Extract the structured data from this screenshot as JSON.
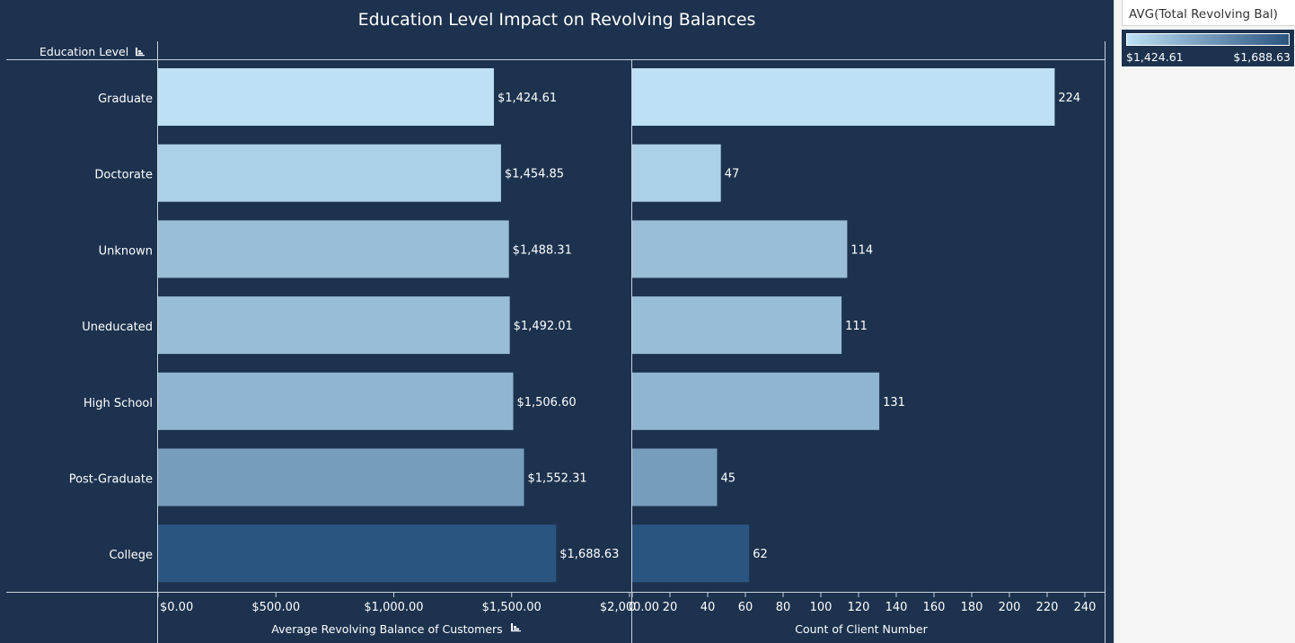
{
  "title": "Education Level Impact on Revolving Balances",
  "row_header": "Education Level",
  "legend": {
    "title": "AVG(Total Revolving Bal)",
    "min_label": "$1,424.61",
    "max_label": "$1,688.63",
    "color_low": "#bde0f4",
    "color_high": "#2b5581"
  },
  "chart_data": [
    {
      "type": "bar",
      "orientation": "horizontal",
      "categories": [
        "Graduate",
        "Doctorate",
        "Unknown",
        "Uneducated",
        "High School",
        "Post-Graduate",
        "College"
      ],
      "values": [
        1424.61,
        1454.85,
        1488.31,
        1492.01,
        1506.6,
        1552.31,
        1688.63
      ],
      "data_labels": [
        "$1,424.61",
        "$1,454.85",
        "$1,488.31",
        "$1,492.01",
        "$1,506.60",
        "$1,552.31",
        "$1,688.63"
      ],
      "xlabel": "Average Revolving Balance of Customers",
      "xlim": [
        0,
        2000
      ],
      "xticks": [
        0,
        500,
        1000,
        1500,
        2000
      ],
      "xtick_labels": [
        "$0.00",
        "$500.00",
        "$1,000.00",
        "$1,500.00",
        "$2,000.00"
      ],
      "grid": false
    },
    {
      "type": "bar",
      "orientation": "horizontal",
      "categories": [
        "Graduate",
        "Doctorate",
        "Unknown",
        "Uneducated",
        "High School",
        "Post-Graduate",
        "College"
      ],
      "values": [
        224,
        47,
        114,
        111,
        131,
        45,
        62
      ],
      "data_labels": [
        "224",
        "47",
        "114",
        "111",
        "131",
        "45",
        "62"
      ],
      "xlabel": "Count of Client Number",
      "xlim": [
        0,
        250
      ],
      "xticks": [
        0,
        20,
        40,
        60,
        80,
        100,
        120,
        140,
        160,
        180,
        200,
        220,
        240
      ],
      "xtick_labels": [
        "0",
        "20",
        "40",
        "60",
        "80",
        "100",
        "120",
        "140",
        "160",
        "180",
        "200",
        "220",
        "240"
      ],
      "grid": false
    }
  ]
}
